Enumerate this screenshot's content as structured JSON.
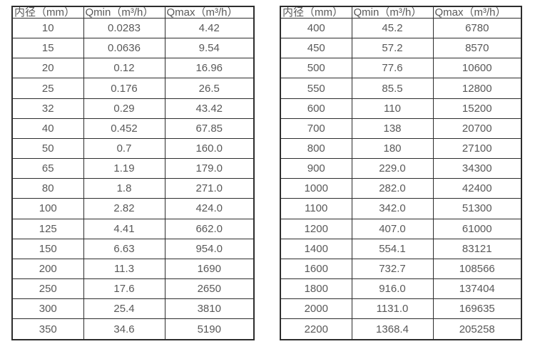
{
  "colors": {
    "border": "#2d2d2d",
    "text": "#595959",
    "background": "#ffffff"
  },
  "tables": [
    {
      "name": "flow-spec-table-small-diameters",
      "headers": [
        "内径（mm）",
        "Qmin（m³/h）",
        "Qmax（m³/h）"
      ],
      "rows": [
        [
          "10",
          "0.0283",
          "4.42"
        ],
        [
          "15",
          "0.0636",
          "9.54"
        ],
        [
          "20",
          "0.12",
          "16.96"
        ],
        [
          "25",
          "0.176",
          "26.5"
        ],
        [
          "32",
          "0.29",
          "43.42"
        ],
        [
          "40",
          "0.452",
          "67.85"
        ],
        [
          "50",
          "0.7",
          "160.0"
        ],
        [
          "65",
          "1.19",
          "179.0"
        ],
        [
          "80",
          "1.8",
          "271.0"
        ],
        [
          "100",
          "2.82",
          "424.0"
        ],
        [
          "125",
          "4.41",
          "662.0"
        ],
        [
          "150",
          "6.63",
          "954.0"
        ],
        [
          "200",
          "11.3",
          "1690"
        ],
        [
          "250",
          "17.6",
          "2650"
        ],
        [
          "300",
          "25.4",
          "3810"
        ],
        [
          "350",
          "34.6",
          "5190"
        ]
      ]
    },
    {
      "name": "flow-spec-table-large-diameters",
      "headers": [
        "内径（mm）",
        "Qmin（m³/h）",
        "Qmax（m³/h）"
      ],
      "rows": [
        [
          "400",
          "45.2",
          "6780"
        ],
        [
          "450",
          "57.2",
          "8570"
        ],
        [
          "500",
          "77.6",
          "10600"
        ],
        [
          "550",
          "85.5",
          "12800"
        ],
        [
          "600",
          "110",
          "15200"
        ],
        [
          "700",
          "138",
          "20700"
        ],
        [
          "800",
          "180",
          "27100"
        ],
        [
          "900",
          "229.0",
          "34300"
        ],
        [
          "1000",
          "282.0",
          "42400"
        ],
        [
          "1100",
          "342.0",
          "51300"
        ],
        [
          "1200",
          "407.0",
          "61000"
        ],
        [
          "1400",
          "554.1",
          "83121"
        ],
        [
          "1600",
          "732.7",
          "108566"
        ],
        [
          "1800",
          "916.0",
          "137404"
        ],
        [
          "2000",
          "1131.0",
          "169635"
        ],
        [
          "2200",
          "1368.4",
          "205258"
        ]
      ]
    }
  ]
}
